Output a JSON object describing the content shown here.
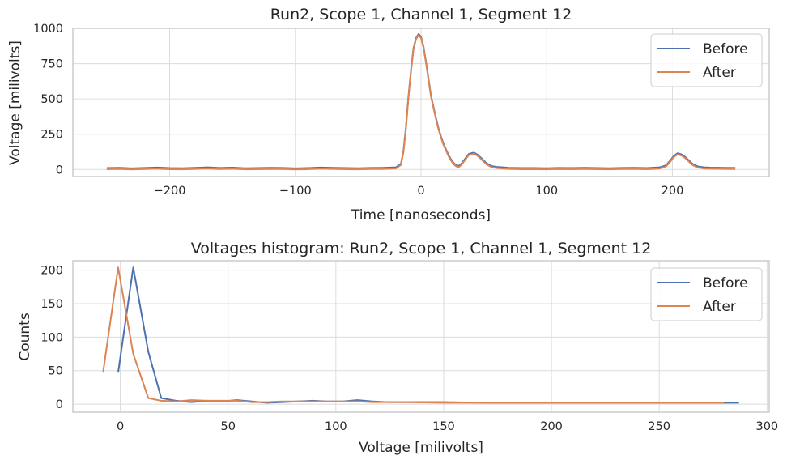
{
  "chart_data": [
    {
      "type": "line",
      "title": "Run2, Scope 1, Channel 1, Segment 12",
      "xlabel": "Time [nanoseconds]",
      "ylabel": "Voltage [milivolts]",
      "xlim": [
        -277,
        277
      ],
      "ylim": [
        -50,
        1000
      ],
      "xticks": [
        -200,
        -100,
        0,
        100,
        200
      ],
      "xtick_labels": [
        "−200",
        "−100",
        "0",
        "100",
        "200"
      ],
      "yticks": [
        0,
        250,
        500,
        750,
        1000
      ],
      "ytick_labels": [
        "0",
        "250",
        "500",
        "750",
        "1000"
      ],
      "grid": true,
      "legend": "top-right",
      "series": [
        {
          "name": "Before",
          "color": "#4c72b0",
          "x": [
            -250,
            -240,
            -230,
            -220,
            -210,
            -200,
            -190,
            -180,
            -170,
            -160,
            -150,
            -140,
            -130,
            -120,
            -110,
            -100,
            -90,
            -80,
            -70,
            -60,
            -50,
            -40,
            -30,
            -20,
            -16,
            -14,
            -12,
            -10,
            -8,
            -6,
            -4,
            -2,
            0,
            2,
            4,
            6,
            8,
            10,
            12,
            14,
            16,
            18,
            20,
            22,
            24,
            26,
            28,
            30,
            32,
            35,
            38,
            42,
            45,
            48,
            52,
            56,
            60,
            65,
            70,
            80,
            90,
            100,
            110,
            120,
            130,
            140,
            150,
            160,
            170,
            180,
            190,
            195,
            198,
            201,
            204,
            207,
            210,
            213,
            216,
            220,
            225,
            230,
            240,
            250
          ],
          "y": [
            10,
            12,
            8,
            11,
            14,
            10,
            9,
            12,
            15,
            11,
            13,
            9,
            10,
            12,
            11,
            8,
            10,
            14,
            12,
            10,
            9,
            11,
            12,
            15,
            40,
            130,
            300,
            520,
            700,
            860,
            930,
            960,
            940,
            870,
            760,
            640,
            520,
            440,
            360,
            290,
            230,
            180,
            140,
            100,
            70,
            45,
            30,
            25,
            40,
            75,
            110,
            120,
            105,
            80,
            45,
            25,
            18,
            15,
            12,
            10,
            10,
            9,
            11,
            10,
            12,
            10,
            9,
            11,
            12,
            10,
            15,
            30,
            60,
            95,
            115,
            108,
            90,
            65,
            40,
            22,
            15,
            13,
            12,
            11
          ]
        },
        {
          "name": "After",
          "color": "#dd8452",
          "x": [
            -250,
            -240,
            -230,
            -220,
            -210,
            -200,
            -190,
            -180,
            -170,
            -160,
            -150,
            -140,
            -130,
            -120,
            -110,
            -100,
            -90,
            -80,
            -70,
            -60,
            -50,
            -40,
            -30,
            -20,
            -16,
            -14,
            -12,
            -10,
            -8,
            -6,
            -4,
            -2,
            0,
            2,
            4,
            6,
            8,
            10,
            12,
            14,
            16,
            18,
            20,
            22,
            24,
            26,
            28,
            30,
            32,
            35,
            38,
            42,
            45,
            48,
            52,
            56,
            60,
            65,
            70,
            80,
            90,
            100,
            110,
            120,
            130,
            140,
            150,
            160,
            170,
            180,
            190,
            195,
            198,
            201,
            204,
            207,
            210,
            213,
            216,
            220,
            225,
            230,
            240,
            250
          ],
          "y": [
            2,
            4,
            0,
            3,
            6,
            2,
            1,
            4,
            7,
            3,
            5,
            1,
            2,
            4,
            3,
            0,
            2,
            6,
            4,
            2,
            1,
            3,
            4,
            7,
            32,
            122,
            292,
            512,
            692,
            852,
            922,
            952,
            932,
            862,
            752,
            632,
            512,
            432,
            352,
            282,
            222,
            172,
            132,
            92,
            62,
            37,
            22,
            17,
            32,
            67,
            102,
            112,
            97,
            72,
            37,
            17,
            10,
            7,
            4,
            2,
            2,
            1,
            3,
            2,
            4,
            2,
            1,
            3,
            4,
            2,
            7,
            22,
            52,
            87,
            107,
            100,
            82,
            57,
            32,
            14,
            7,
            5,
            4,
            3
          ]
        }
      ]
    },
    {
      "type": "line",
      "title": "Voltages histogram: Run2, Scope 1, Channel 1, Segment 12",
      "xlabel": "Voltage [milivolts]",
      "ylabel": "Counts",
      "xlim": [
        -22,
        301
      ],
      "ylim": [
        -12,
        214
      ],
      "xticks": [
        0,
        50,
        100,
        150,
        200,
        250,
        300
      ],
      "xtick_labels": [
        "0",
        "50",
        "100",
        "150",
        "200",
        "250",
        "300"
      ],
      "yticks": [
        0,
        50,
        100,
        150,
        200
      ],
      "ytick_labels": [
        "0",
        "50",
        "100",
        "150",
        "200"
      ],
      "grid": true,
      "legend": "top-right",
      "series": [
        {
          "name": "Before",
          "color": "#4c72b0",
          "x": [
            -1,
            6,
            13,
            19,
            26,
            33,
            40,
            47,
            54,
            61,
            68,
            75,
            82,
            89,
            96,
            103,
            110,
            117,
            124,
            131,
            150,
            170,
            200,
            230,
            260,
            287
          ],
          "y": [
            47,
            204,
            78,
            9,
            5,
            3,
            5,
            4,
            6,
            4,
            2,
            3,
            4,
            5,
            4,
            4,
            6,
            4,
            3,
            3,
            3,
            2,
            2,
            2,
            2,
            2
          ]
        },
        {
          "name": "After",
          "color": "#dd8452",
          "x": [
            -8,
            -1,
            6,
            13,
            19,
            26,
            33,
            40,
            47,
            54,
            61,
            68,
            75,
            82,
            89,
            96,
            103,
            110,
            117,
            124,
            131,
            150,
            170,
            200,
            230,
            260,
            280
          ],
          "y": [
            47,
            204,
            75,
            9,
            5,
            4,
            6,
            5,
            5,
            5,
            3,
            3,
            4,
            4,
            4,
            4,
            4,
            4,
            3,
            3,
            3,
            2,
            2,
            2,
            2,
            2,
            2
          ]
        }
      ]
    }
  ]
}
